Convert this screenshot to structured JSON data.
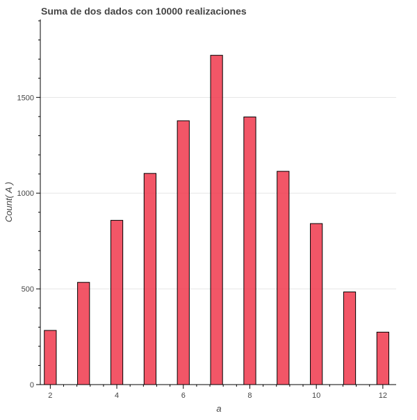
{
  "colors": {
    "bar_fill": "#f0384c",
    "bar_stroke": "#000000",
    "grid": "#e5e5e5",
    "axis": "#000000",
    "text": "#444444"
  },
  "chart_data": {
    "type": "bar",
    "title": "Suma de dos dados con 10000 realizaciones",
    "xlabel": "a",
    "ylabel": "Count( A )",
    "x": [
      2,
      3,
      4,
      5,
      6,
      7,
      8,
      9,
      10,
      11,
      12
    ],
    "values": [
      283,
      534,
      858,
      1103,
      1378,
      1720,
      1398,
      1114,
      841,
      484,
      274
    ],
    "xlim": [
      1.7,
      12.4
    ],
    "ylim": [
      0,
      1900
    ],
    "x_ticks": [
      2,
      4,
      6,
      8,
      10,
      12
    ],
    "y_ticks": [
      0,
      500,
      1000,
      1500
    ],
    "grid": true,
    "legend": "none"
  }
}
